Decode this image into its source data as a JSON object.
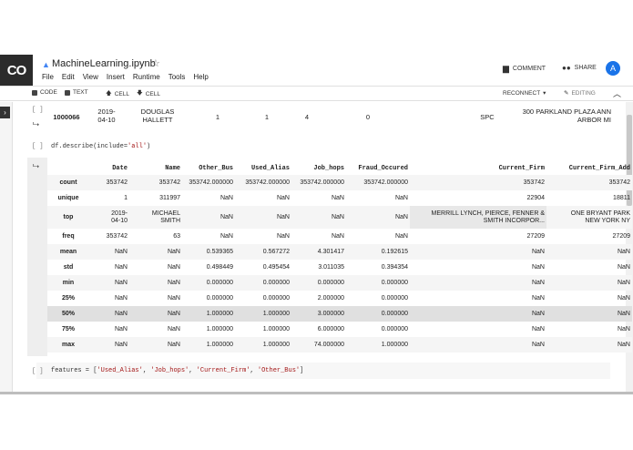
{
  "app": {
    "logo": "CO",
    "title": "MachineLearning.ipynb",
    "star": "☆",
    "menu": [
      "File",
      "Edit",
      "View",
      "Insert",
      "Runtime",
      "Tools",
      "Help"
    ],
    "comment": "COMMENT",
    "share": "SHARE",
    "avatar": "A"
  },
  "toolbar": {
    "code": "CODE",
    "text": "TEXT",
    "cell_up": "CELL",
    "cell_down": "CELL",
    "reconnect": "RECONNECT",
    "editing": "EDITING"
  },
  "cell_prev_output": {
    "bracket": "[ ]",
    "values": [
      "1000066",
      "2019-\n04-10",
      "DOUGLAS\nHALLETT",
      "1",
      "1",
      "4",
      "0",
      "SPC",
      "300 PARKLAND PLAZA ANN\nARBOR MI"
    ]
  },
  "cell_describe": {
    "bracket": "[ ]",
    "code_plain": "df.describe(include=",
    "code_string": "'all'",
    "code_close": ")"
  },
  "describe_table": {
    "columns": [
      "Date",
      "Name",
      "Other_Bus",
      "Used_Alias",
      "Job_hops",
      "Fraud_Occured",
      "Current_Firm",
      "Current_Firm_Add"
    ],
    "rows": [
      {
        "label": "count",
        "cells": [
          "353742",
          "353742",
          "353742.000000",
          "353742.000000",
          "353742.000000",
          "353742.000000",
          "353742",
          "353742"
        ]
      },
      {
        "label": "unique",
        "cells": [
          "1",
          "311997",
          "NaN",
          "NaN",
          "NaN",
          "NaN",
          "22904",
          "18811"
        ]
      },
      {
        "label": "top",
        "cells": [
          "2019-\n04-10",
          "MICHAEL\nSMITH",
          "NaN",
          "NaN",
          "NaN",
          "NaN",
          "MERRILL LYNCH, PIERCE, FENNER &\nSMITH INCORPOR...",
          "ONE BRYANT PARK\nNEW YORK NY"
        ]
      },
      {
        "label": "freq",
        "cells": [
          "353742",
          "63",
          "NaN",
          "NaN",
          "NaN",
          "NaN",
          "27209",
          "27209"
        ]
      },
      {
        "label": "mean",
        "cells": [
          "NaN",
          "NaN",
          "0.539365",
          "0.567272",
          "4.301417",
          "0.192615",
          "NaN",
          "NaN"
        ]
      },
      {
        "label": "std",
        "cells": [
          "NaN",
          "NaN",
          "0.498449",
          "0.495454",
          "3.011035",
          "0.394354",
          "NaN",
          "NaN"
        ]
      },
      {
        "label": "min",
        "cells": [
          "NaN",
          "NaN",
          "0.000000",
          "0.000000",
          "0.000000",
          "0.000000",
          "NaN",
          "NaN"
        ]
      },
      {
        "label": "25%",
        "cells": [
          "NaN",
          "NaN",
          "0.000000",
          "0.000000",
          "2.000000",
          "0.000000",
          "NaN",
          "NaN"
        ]
      },
      {
        "label": "50%",
        "cells": [
          "NaN",
          "NaN",
          "1.000000",
          "1.000000",
          "3.000000",
          "0.000000",
          "NaN",
          "NaN"
        ]
      },
      {
        "label": "75%",
        "cells": [
          "NaN",
          "NaN",
          "1.000000",
          "1.000000",
          "6.000000",
          "0.000000",
          "NaN",
          "NaN"
        ]
      },
      {
        "label": "max",
        "cells": [
          "NaN",
          "NaN",
          "1.000000",
          "1.000000",
          "74.000000",
          "1.000000",
          "NaN",
          "NaN"
        ]
      }
    ]
  },
  "cell_features": {
    "bracket": "[ ]",
    "code_plain": "features = [",
    "items": [
      "'Used_Alias'",
      "'Job_hops'",
      "'Current_Firm'",
      "'Other_Bus'"
    ],
    "code_close": "]"
  }
}
